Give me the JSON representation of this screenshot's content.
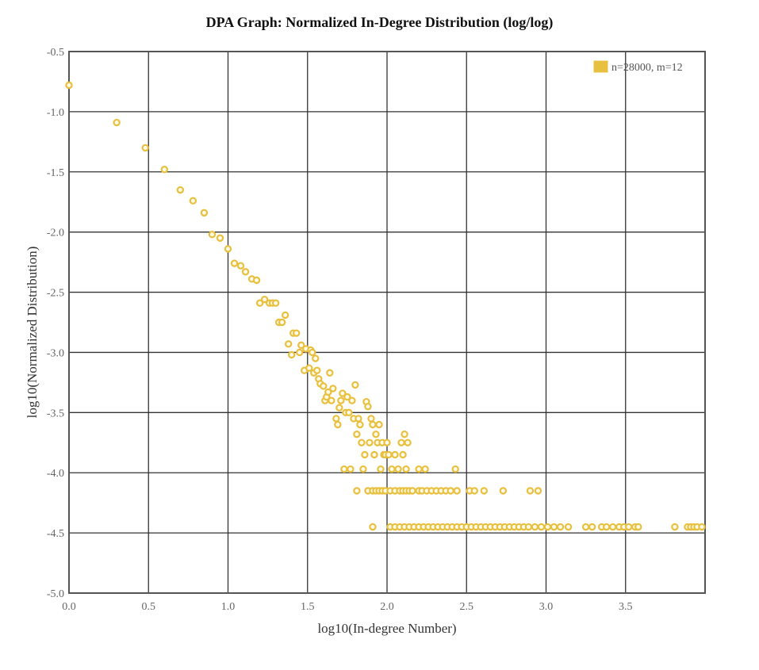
{
  "chart_data": {
    "type": "scatter",
    "title": "DPA Graph: Normalized In-Degree Distribution (log/log)",
    "xlabel": "log10(In-degree Number)",
    "ylabel": "log10(Normalized Distribution)",
    "xlim": [
      0.0,
      4.0
    ],
    "ylim": [
      -5.0,
      -0.5
    ],
    "xticks": [
      "0.0",
      "0.5",
      "1.0",
      "1.5",
      "2.0",
      "2.5",
      "3.0",
      "3.5"
    ],
    "yticks": [
      "-0.5",
      "-1.0",
      "-1.5",
      "-2.0",
      "-2.5",
      "-3.0",
      "-3.5",
      "-4.0",
      "-4.5",
      "-5.0"
    ],
    "grid": true,
    "legend_position": "top-right",
    "colors": {
      "marker": "#e8c040",
      "marker_fill": "#fffbe8",
      "grid": "#333333",
      "axis": "#555555"
    },
    "series": [
      {
        "name": "n=28000, m=12",
        "points": [
          [
            0.0,
            -0.78
          ],
          [
            0.3,
            -1.09
          ],
          [
            0.48,
            -1.3
          ],
          [
            0.6,
            -1.48
          ],
          [
            0.7,
            -1.65
          ],
          [
            0.78,
            -1.74
          ],
          [
            0.85,
            -1.84
          ],
          [
            0.9,
            -2.02
          ],
          [
            0.95,
            -2.05
          ],
          [
            1.0,
            -2.14
          ],
          [
            1.04,
            -2.26
          ],
          [
            1.08,
            -2.28
          ],
          [
            1.11,
            -2.33
          ],
          [
            1.15,
            -2.39
          ],
          [
            1.18,
            -2.4
          ],
          [
            1.2,
            -2.59
          ],
          [
            1.23,
            -2.56
          ],
          [
            1.26,
            -2.59
          ],
          [
            1.28,
            -2.59
          ],
          [
            1.3,
            -2.59
          ],
          [
            1.32,
            -2.75
          ],
          [
            1.34,
            -2.75
          ],
          [
            1.36,
            -2.69
          ],
          [
            1.38,
            -2.93
          ],
          [
            1.4,
            -3.02
          ],
          [
            1.41,
            -2.84
          ],
          [
            1.43,
            -2.84
          ],
          [
            1.45,
            -3.0
          ],
          [
            1.46,
            -2.94
          ],
          [
            1.48,
            -3.15
          ],
          [
            1.49,
            -2.97
          ],
          [
            1.51,
            -3.13
          ],
          [
            1.52,
            -2.98
          ],
          [
            1.53,
            -3.0
          ],
          [
            1.54,
            -3.17
          ],
          [
            1.55,
            -3.05
          ],
          [
            1.56,
            -3.15
          ],
          [
            1.57,
            -3.22
          ],
          [
            1.58,
            -3.26
          ],
          [
            1.6,
            -3.28
          ],
          [
            1.61,
            -3.4
          ],
          [
            1.62,
            -3.37
          ],
          [
            1.63,
            -3.33
          ],
          [
            1.64,
            -3.17
          ],
          [
            1.65,
            -3.4
          ],
          [
            1.66,
            -3.3
          ],
          [
            1.68,
            -3.55
          ],
          [
            1.69,
            -3.6
          ],
          [
            1.7,
            -3.46
          ],
          [
            1.71,
            -3.4
          ],
          [
            1.72,
            -3.34
          ],
          [
            1.73,
            -3.97
          ],
          [
            1.74,
            -3.5
          ],
          [
            1.75,
            -3.37
          ],
          [
            1.76,
            -3.5
          ],
          [
            1.77,
            -3.97
          ],
          [
            1.78,
            -3.4
          ],
          [
            1.79,
            -3.55
          ],
          [
            1.8,
            -3.27
          ],
          [
            1.81,
            -3.68
          ],
          [
            1.82,
            -3.55
          ],
          [
            1.83,
            -3.6
          ],
          [
            1.84,
            -3.75
          ],
          [
            1.85,
            -3.97
          ],
          [
            1.86,
            -3.85
          ],
          [
            1.87,
            -3.41
          ],
          [
            1.88,
            -3.45
          ],
          [
            1.89,
            -3.75
          ],
          [
            1.9,
            -3.55
          ],
          [
            1.91,
            -3.6
          ],
          [
            1.92,
            -3.85
          ],
          [
            1.93,
            -3.68
          ],
          [
            1.94,
            -3.75
          ],
          [
            1.95,
            -3.6
          ],
          [
            1.96,
            -3.97
          ],
          [
            1.97,
            -3.75
          ],
          [
            1.98,
            -3.85
          ],
          [
            1.99,
            -3.85
          ],
          [
            2.0,
            -3.75
          ],
          [
            2.01,
            -3.85
          ],
          [
            2.03,
            -3.97
          ],
          [
            2.05,
            -3.85
          ],
          [
            2.07,
            -3.97
          ],
          [
            2.09,
            -3.75
          ],
          [
            2.1,
            -3.85
          ],
          [
            2.11,
            -3.68
          ],
          [
            2.12,
            -3.97
          ],
          [
            2.13,
            -3.75
          ],
          [
            2.2,
            -3.97
          ],
          [
            2.24,
            -3.97
          ],
          [
            2.43,
            -3.97
          ],
          [
            1.81,
            -4.15
          ],
          [
            1.88,
            -4.15
          ],
          [
            1.91,
            -4.15
          ],
          [
            1.93,
            -4.15
          ],
          [
            1.95,
            -4.15
          ],
          [
            1.97,
            -4.15
          ],
          [
            1.99,
            -4.15
          ],
          [
            2.02,
            -4.15
          ],
          [
            2.05,
            -4.15
          ],
          [
            2.08,
            -4.15
          ],
          [
            2.1,
            -4.15
          ],
          [
            2.12,
            -4.15
          ],
          [
            2.14,
            -4.15
          ],
          [
            2.16,
            -4.15
          ],
          [
            2.2,
            -4.15
          ],
          [
            2.22,
            -4.15
          ],
          [
            2.25,
            -4.15
          ],
          [
            2.28,
            -4.15
          ],
          [
            2.31,
            -4.15
          ],
          [
            2.34,
            -4.15
          ],
          [
            2.37,
            -4.15
          ],
          [
            2.4,
            -4.15
          ],
          [
            2.44,
            -4.15
          ],
          [
            2.52,
            -4.15
          ],
          [
            2.55,
            -4.15
          ],
          [
            2.61,
            -4.15
          ],
          [
            2.73,
            -4.15
          ],
          [
            2.9,
            -4.15
          ],
          [
            2.95,
            -4.15
          ],
          [
            1.91,
            -4.45
          ],
          [
            2.02,
            -4.45
          ],
          [
            2.05,
            -4.45
          ],
          [
            2.08,
            -4.45
          ],
          [
            2.11,
            -4.45
          ],
          [
            2.14,
            -4.45
          ],
          [
            2.17,
            -4.45
          ],
          [
            2.2,
            -4.45
          ],
          [
            2.23,
            -4.45
          ],
          [
            2.26,
            -4.45
          ],
          [
            2.29,
            -4.45
          ],
          [
            2.32,
            -4.45
          ],
          [
            2.35,
            -4.45
          ],
          [
            2.38,
            -4.45
          ],
          [
            2.41,
            -4.45
          ],
          [
            2.44,
            -4.45
          ],
          [
            2.47,
            -4.45
          ],
          [
            2.5,
            -4.45
          ],
          [
            2.53,
            -4.45
          ],
          [
            2.56,
            -4.45
          ],
          [
            2.59,
            -4.45
          ],
          [
            2.62,
            -4.45
          ],
          [
            2.65,
            -4.45
          ],
          [
            2.68,
            -4.45
          ],
          [
            2.71,
            -4.45
          ],
          [
            2.74,
            -4.45
          ],
          [
            2.77,
            -4.45
          ],
          [
            2.8,
            -4.45
          ],
          [
            2.83,
            -4.45
          ],
          [
            2.86,
            -4.45
          ],
          [
            2.89,
            -4.45
          ],
          [
            2.93,
            -4.45
          ],
          [
            2.97,
            -4.45
          ],
          [
            3.01,
            -4.45
          ],
          [
            3.05,
            -4.45
          ],
          [
            3.09,
            -4.45
          ],
          [
            3.14,
            -4.45
          ],
          [
            3.25,
            -4.45
          ],
          [
            3.29,
            -4.45
          ],
          [
            3.35,
            -4.45
          ],
          [
            3.38,
            -4.45
          ],
          [
            3.42,
            -4.45
          ],
          [
            3.46,
            -4.45
          ],
          [
            3.49,
            -4.45
          ],
          [
            3.52,
            -4.45
          ],
          [
            3.56,
            -4.45
          ],
          [
            3.58,
            -4.45
          ],
          [
            3.81,
            -4.45
          ],
          [
            3.89,
            -4.45
          ],
          [
            3.91,
            -4.45
          ],
          [
            3.93,
            -4.45
          ],
          [
            3.95,
            -4.45
          ],
          [
            3.98,
            -4.45
          ]
        ]
      }
    ]
  }
}
